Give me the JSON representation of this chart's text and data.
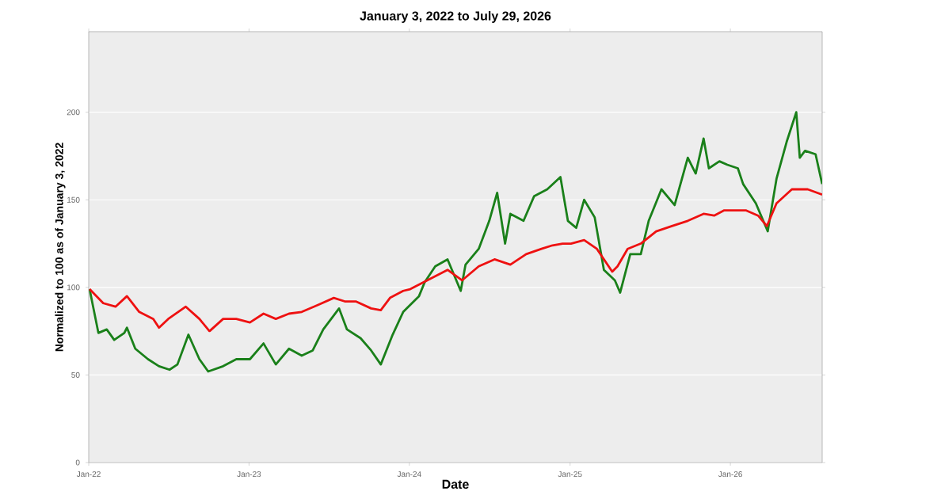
{
  "chart_data": {
    "type": "line",
    "title": "January 3, 2022 to July 29, 2026",
    "xlabel": "Date",
    "ylabel": "Normalized to 100 as of January 3, 2022",
    "xlim": [
      "2022-01-01",
      "2026-07-29"
    ],
    "xticks": [
      {
        "value": "2022-01-01",
        "label": "Jan-22"
      },
      {
        "value": "2023-01-01",
        "label": "Jan-23"
      },
      {
        "value": "2024-01-01",
        "label": "Jan-24"
      },
      {
        "value": "2025-01-01",
        "label": "Jan-25"
      },
      {
        "value": "2026-01-01",
        "label": "Jan-26"
      }
    ],
    "ylim": [
      0,
      246
    ],
    "yticks": [
      0,
      50,
      100,
      150,
      200
    ],
    "grid": "y",
    "marker": "none",
    "line_style": "solid",
    "series": [
      {
        "color": "#1a801a",
        "x": [
          "2022-01-03",
          "2022-01-11",
          "2022-01-23",
          "2022-02-11",
          "2022-02-28",
          "2022-03-23",
          "2022-03-29",
          "2022-04-17",
          "2022-05-16",
          "2022-06-10",
          "2022-07-04",
          "2022-07-22",
          "2022-08-16",
          "2022-09-10",
          "2022-09-30",
          "2022-11-03",
          "2022-12-03",
          "2023-01-03",
          "2023-02-03",
          "2023-03-03",
          "2023-04-02",
          "2023-05-01",
          "2023-05-26",
          "2023-06-19",
          "2023-07-25",
          "2023-08-12",
          "2023-09-12",
          "2023-10-06",
          "2023-10-28",
          "2023-11-24",
          "2023-12-18",
          "2024-01-23",
          "2024-02-05",
          "2024-02-29",
          "2024-03-28",
          "2024-04-27",
          "2024-05-08",
          "2024-06-07",
          "2024-07-01",
          "2024-07-19",
          "2024-08-06",
          "2024-08-18",
          "2024-09-17",
          "2024-10-11",
          "2024-11-10",
          "2024-12-10",
          "2024-12-27",
          "2025-01-15",
          "2025-02-02",
          "2025-02-26",
          "2025-03-19",
          "2025-04-13",
          "2025-04-25",
          "2025-05-18",
          "2025-06-11",
          "2025-06-29",
          "2025-07-28",
          "2025-08-27",
          "2025-09-26",
          "2025-10-14",
          "2025-11-01",
          "2025-11-13",
          "2025-12-07",
          "2025-12-25",
          "2026-01-18",
          "2026-01-30",
          "2026-02-28",
          "2026-03-27",
          "2026-04-16",
          "2026-05-09",
          "2026-05-31",
          "2026-06-08",
          "2026-06-20",
          "2026-07-14",
          "2026-07-29"
        ],
        "values": [
          99,
          89,
          74,
          76,
          70,
          74,
          77,
          65,
          59,
          55,
          53,
          56,
          73,
          59,
          52,
          55,
          59,
          59,
          68,
          56,
          65,
          61,
          64,
          76,
          88,
          76,
          71,
          64,
          56,
          73,
          86,
          95,
          103,
          112,
          116,
          98,
          113,
          122,
          138,
          154,
          125,
          142,
          138,
          152,
          156,
          163,
          138,
          134,
          150,
          140,
          110,
          104,
          97,
          119,
          119,
          138,
          156,
          147,
          174,
          165,
          185,
          168,
          172,
          170,
          168,
          159,
          148,
          132,
          162,
          183,
          200,
          174,
          178,
          176,
          159
        ]
      },
      {
        "color": "#ee1111",
        "x": [
          "2022-01-03",
          "2022-02-03",
          "2022-03-03",
          "2022-03-29",
          "2022-04-26",
          "2022-05-28",
          "2022-06-10",
          "2022-07-01",
          "2022-08-10",
          "2022-09-10",
          "2022-10-03",
          "2022-11-03",
          "2022-12-03",
          "2023-01-03",
          "2023-02-03",
          "2023-03-03",
          "2023-04-02",
          "2023-05-01",
          "2023-06-07",
          "2023-07-13",
          "2023-08-07",
          "2023-09-01",
          "2023-10-06",
          "2023-10-28",
          "2023-11-18",
          "2023-12-18",
          "2024-01-03",
          "2024-03-28",
          "2024-04-30",
          "2024-06-07",
          "2024-07-13",
          "2024-08-18",
          "2024-09-23",
          "2024-10-28",
          "2024-11-22",
          "2024-12-15",
          "2025-01-03",
          "2025-02-02",
          "2025-03-03",
          "2025-04-07",
          "2025-04-19",
          "2025-05-12",
          "2025-06-11",
          "2025-07-16",
          "2025-08-21",
          "2025-09-26",
          "2025-11-01",
          "2025-11-25",
          "2025-12-18",
          "2026-01-06",
          "2026-02-05",
          "2026-03-05",
          "2026-03-25",
          "2026-04-16",
          "2026-05-21",
          "2026-06-26",
          "2026-07-29"
        ],
        "values": [
          99,
          91,
          89,
          95,
          86,
          82,
          77,
          82,
          89,
          82,
          75,
          82,
          82,
          80,
          85,
          82,
          85,
          86,
          90,
          94,
          92,
          92,
          88,
          87,
          94,
          98,
          99,
          110,
          104,
          112,
          116,
          113,
          119,
          122,
          124,
          125,
          125,
          127,
          122,
          109,
          112,
          122,
          125,
          132,
          135,
          138,
          142,
          141,
          144,
          144,
          144,
          141,
          135,
          148,
          156,
          156,
          153
        ]
      }
    ]
  }
}
